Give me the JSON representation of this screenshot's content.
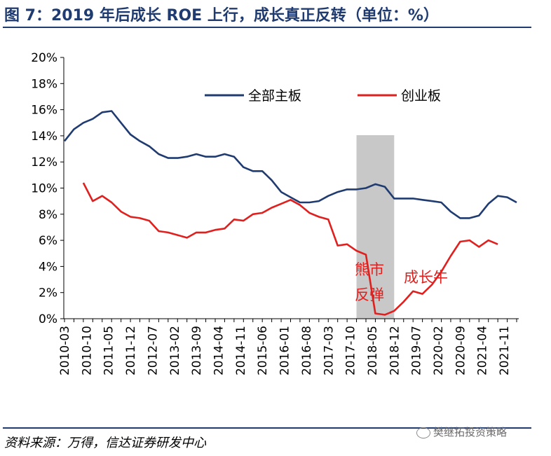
{
  "title": "图 7：2019 年后成长 ROE 上行，成长真正反转（单位：%）",
  "source": "资料来源：万得，信达证券研发中心",
  "watermark": "樊继拓投资策略",
  "colors": {
    "title": "#1f3b70",
    "main_board": "#1f3b70",
    "chinext": "#e0201e",
    "shade": "#c8c8c8"
  },
  "annotations": {
    "bear": [
      "熊市",
      "反弹"
    ],
    "growth": "成长牛"
  },
  "chart_data": {
    "type": "line",
    "ylim": [
      0,
      20
    ],
    "yticks": [
      "0%",
      "2%",
      "4%",
      "6%",
      "8%",
      "10%",
      "12%",
      "14%",
      "16%",
      "18%",
      "20%"
    ],
    "x_tick_labels": [
      "2010-03",
      "2010-10",
      "2011-05",
      "2011-12",
      "2012-07",
      "2013-02",
      "2013-09",
      "2014-04",
      "2014-11",
      "2015-06",
      "2016-01",
      "2016-08",
      "2017-03",
      "2017-10",
      "2018-05",
      "2018-12",
      "2019-07",
      "2020-02",
      "2020-09",
      "2021-04",
      "2021-11"
    ],
    "x": [
      "2010-03",
      "2010-06",
      "2010-09",
      "2010-12",
      "2011-03",
      "2011-06",
      "2011-09",
      "2011-12",
      "2012-03",
      "2012-06",
      "2012-09",
      "2012-12",
      "2013-03",
      "2013-06",
      "2013-09",
      "2013-12",
      "2014-03",
      "2014-06",
      "2014-09",
      "2014-12",
      "2015-03",
      "2015-06",
      "2015-09",
      "2015-12",
      "2016-03",
      "2016-06",
      "2016-09",
      "2016-12",
      "2017-03",
      "2017-06",
      "2017-09",
      "2017-12",
      "2018-03",
      "2018-06",
      "2018-09",
      "2018-12",
      "2019-03",
      "2019-06",
      "2019-09",
      "2019-12",
      "2020-03",
      "2020-06",
      "2020-09",
      "2020-12",
      "2021-03",
      "2021-06",
      "2021-09",
      "2021-12",
      "2022-03"
    ],
    "shaded_range": [
      "2017-12",
      "2018-12"
    ],
    "series": [
      {
        "name": "全部主板",
        "color": "#1f3b70",
        "values": [
          13.6,
          14.5,
          15.0,
          15.3,
          15.8,
          15.9,
          15.0,
          14.1,
          13.6,
          13.2,
          12.6,
          12.3,
          12.3,
          12.4,
          12.6,
          12.4,
          12.4,
          12.6,
          12.4,
          11.6,
          11.3,
          11.3,
          10.6,
          9.7,
          9.3,
          8.9,
          8.9,
          9.0,
          9.4,
          9.7,
          9.9,
          9.9,
          10.0,
          10.3,
          10.1,
          9.2,
          9.2,
          9.2,
          9.1,
          9.0,
          8.9,
          8.2,
          7.7,
          7.7,
          7.9,
          8.8,
          9.4,
          9.3,
          8.9
        ]
      },
      {
        "name": "创业板",
        "color": "#e0201e",
        "values": [
          null,
          null,
          10.4,
          9.0,
          9.4,
          8.9,
          8.2,
          7.8,
          7.7,
          7.5,
          6.7,
          6.6,
          6.4,
          6.2,
          6.6,
          6.6,
          6.8,
          6.9,
          7.6,
          7.5,
          8.0,
          8.1,
          8.5,
          8.8,
          9.1,
          8.7,
          8.1,
          7.8,
          7.6,
          5.6,
          5.7,
          5.2,
          4.9,
          0.4,
          0.3,
          0.6,
          1.3,
          2.1,
          1.9,
          2.6,
          3.6,
          4.8,
          5.9,
          6.0,
          5.5,
          6.0,
          5.7,
          null,
          null
        ]
      }
    ]
  }
}
